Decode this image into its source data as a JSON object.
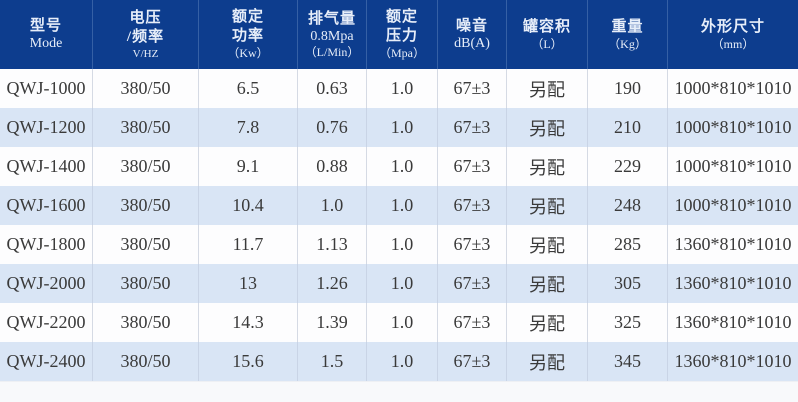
{
  "colors": {
    "header_bg": "#0d3d8e",
    "header_text": "#e7eef9",
    "header_divider": "#3560a5",
    "row_bg": "#fdfdfe",
    "row_alt_bg": "#d9e5f5",
    "body_text": "#3a3a3a",
    "body_divider": "#d5dae4",
    "footer_bg": "#f8f9fb"
  },
  "table": {
    "columns": [
      {
        "id": "model",
        "lines": [
          "型号",
          "Mode"
        ]
      },
      {
        "id": "voltage-frequency",
        "lines": [
          "电压",
          "/频率",
          "V/HZ"
        ]
      },
      {
        "id": "rated-power",
        "lines": [
          "额定",
          "功率",
          "（Kw）"
        ]
      },
      {
        "id": "air-displacement",
        "lines": [
          "排气量",
          "0.8Mpa",
          "（L/Min）"
        ]
      },
      {
        "id": "rated-pressure",
        "lines": [
          "额定",
          "压力",
          "（Mpa）"
        ]
      },
      {
        "id": "noise",
        "lines": [
          "噪音",
          "dB(A)"
        ]
      },
      {
        "id": "tank-volume",
        "lines": [
          "罐容积",
          "（L）"
        ]
      },
      {
        "id": "weight",
        "lines": [
          "重量",
          "（Kg）"
        ]
      },
      {
        "id": "dimensions",
        "lines": [
          "外形尺寸",
          "（mm）"
        ]
      }
    ],
    "rows": [
      {
        "cells": [
          "QWJ-1000",
          "380/50",
          "6.5",
          "0.63",
          "1.0",
          "67±3",
          "另配",
          "190",
          "1000*810*1010"
        ]
      },
      {
        "cells": [
          "QWJ-1200",
          "380/50",
          "7.8",
          "0.76",
          "1.0",
          "67±3",
          "另配",
          "210",
          "1000*810*1010"
        ]
      },
      {
        "cells": [
          "QWJ-1400",
          "380/50",
          "9.1",
          "0.88",
          "1.0",
          "67±3",
          "另配",
          "229",
          "1000*810*1010"
        ]
      },
      {
        "cells": [
          "QWJ-1600",
          "380/50",
          "10.4",
          "1.0",
          "1.0",
          "67±3",
          "另配",
          "248",
          "1000*810*1010"
        ]
      },
      {
        "cells": [
          "QWJ-1800",
          "380/50",
          "11.7",
          "1.13",
          "1.0",
          "67±3",
          "另配",
          "285",
          "1360*810*1010"
        ]
      },
      {
        "cells": [
          "QWJ-2000",
          "380/50",
          "13",
          "1.26",
          "1.0",
          "67±3",
          "另配",
          "305",
          "1360*810*1010"
        ]
      },
      {
        "cells": [
          "QWJ-2200",
          "380/50",
          "14.3",
          "1.39",
          "1.0",
          "67±3",
          "另配",
          "325",
          "1360*810*1010"
        ]
      },
      {
        "cells": [
          "QWJ-2400",
          "380/50",
          "15.6",
          "1.5",
          "1.0",
          "67±3",
          "另配",
          "345",
          "1360*810*1010"
        ]
      }
    ]
  }
}
